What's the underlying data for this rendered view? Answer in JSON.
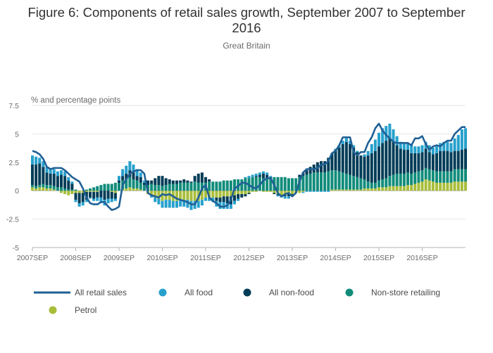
{
  "colors": {
    "all_retail": "#206095",
    "all_food": "#27a0cc",
    "non_food": "#003c57",
    "non_store": "#118c7b",
    "petrol": "#a8bd3a",
    "grid": "#e6e6e6",
    "zero_line": "#b3b3b3"
  },
  "chart_data": {
    "type": "bar",
    "title": "Figure 6: Components of retail sales growth, September 2007 to September 2016",
    "subtitle": "Great Britain",
    "ylabel": "% and percentage points",
    "ylim": [
      -5,
      7.5
    ],
    "yticks": [
      -5,
      -2.5,
      0,
      2.5,
      5,
      7.5
    ],
    "ytick_labels": [
      "-5",
      "-2.5",
      "0",
      "2.5",
      "5",
      "7.5"
    ],
    "xtick_labels": [
      "2007SEP",
      "2008SEP",
      "2009SEP",
      "2010SEP",
      "2011SEP",
      "2012SEP",
      "2013SEP",
      "2014SEP",
      "2015SEP",
      "2016SEP"
    ],
    "x_start": "2007SEP",
    "x_end": "2016SEP",
    "stacked": true,
    "legend": [
      "All retail sales",
      "All food",
      "All non-food",
      "Non-store retailing",
      "Petrol"
    ],
    "series": [
      {
        "name": "Petrol",
        "values": [
          0.3,
          0.2,
          0.3,
          0.3,
          0.2,
          0.2,
          0.1,
          0.0,
          -0.2,
          -0.3,
          -0.4,
          -0.3,
          -0.2,
          -0.2,
          -0.2,
          -0.1,
          -0.1,
          -0.1,
          -0.1,
          0.0,
          0.0,
          0.0,
          -0.1,
          -0.2,
          0.0,
          0.1,
          0.2,
          0.3,
          0.2,
          0.2,
          0.1,
          0.0,
          -0.3,
          -0.4,
          -0.6,
          -0.7,
          -0.9,
          -0.8,
          -0.8,
          -0.9,
          -0.9,
          -0.8,
          -0.8,
          -0.8,
          -0.9,
          -0.9,
          -0.9,
          -0.8,
          -0.6,
          -0.6,
          -0.6,
          -0.6,
          -0.6,
          -0.5,
          -0.5,
          -0.5,
          -0.4,
          -0.3,
          -0.3,
          -0.3,
          -0.2,
          -0.1,
          -0.1,
          0.0,
          -0.1,
          -0.1,
          -0.1,
          -0.2,
          -0.3,
          -0.4,
          -0.4,
          -0.3,
          -0.3,
          -0.2,
          -0.2,
          -0.1,
          0.0,
          0.0,
          0.0,
          0.0,
          0.0,
          0.0,
          0.0,
          0.1,
          0.1,
          0.1,
          0.1,
          0.1,
          0.1,
          0.1,
          0.1,
          0.1,
          0.2,
          0.2,
          0.2,
          0.2,
          0.3,
          0.3,
          0.3,
          0.4,
          0.4,
          0.4,
          0.4,
          0.4,
          0.5,
          0.5,
          0.6,
          0.7,
          0.8,
          1.0,
          0.9,
          0.8,
          0.7,
          0.7,
          0.7,
          0.7,
          0.7,
          0.8,
          0.8,
          0.8,
          0.8
        ]
      },
      {
        "name": "Non-store retailing",
        "values": [
          0.2,
          0.2,
          0.2,
          0.3,
          0.3,
          0.3,
          0.3,
          0.3,
          0.3,
          0.2,
          0.1,
          0.1,
          0.1,
          0.0,
          0.0,
          0.1,
          0.2,
          0.3,
          0.4,
          0.5,
          0.6,
          0.6,
          0.6,
          0.7,
          0.7,
          0.8,
          0.8,
          0.9,
          0.8,
          0.7,
          0.6,
          0.5,
          0.5,
          0.6,
          0.5,
          0.5,
          0.4,
          0.5,
          0.6,
          0.6,
          0.6,
          0.7,
          0.7,
          0.7,
          0.7,
          0.8,
          0.7,
          0.7,
          0.7,
          0.8,
          0.8,
          0.8,
          0.8,
          0.9,
          0.9,
          0.9,
          1.0,
          1.0,
          1.0,
          1.1,
          1.1,
          1.2,
          1.2,
          1.2,
          1.1,
          1.1,
          1.1,
          1.2,
          1.2,
          1.2,
          1.2,
          1.1,
          1.1,
          1.1,
          1.2,
          1.3,
          1.4,
          1.5,
          1.6,
          1.6,
          1.6,
          1.6,
          1.7,
          1.7,
          1.7,
          1.6,
          1.5,
          1.4,
          1.3,
          1.2,
          1.1,
          1.0,
          0.8,
          0.6,
          0.5,
          0.5,
          0.6,
          0.7,
          0.8,
          0.9,
          1.0,
          1.1,
          1.1,
          1.1,
          1.1,
          1.0,
          1.0,
          1.0,
          1.0,
          1.0,
          1.0,
          1.0,
          1.0,
          1.0,
          1.0,
          1.0,
          1.0,
          1.1,
          1.1,
          1.1,
          1.1
        ]
      },
      {
        "name": "All non-food",
        "values": [
          1.8,
          1.9,
          1.9,
          1.5,
          1.1,
          1.0,
          1.1,
          1.0,
          1.1,
          1.1,
          0.8,
          0.5,
          -0.6,
          -0.9,
          -0.8,
          -0.7,
          -0.5,
          -0.6,
          -0.5,
          -0.6,
          -0.8,
          -0.7,
          -0.6,
          -0.5,
          0.2,
          0.4,
          0.5,
          0.6,
          0.6,
          0.4,
          0.5,
          0.2,
          0.4,
          0.3,
          0.6,
          0.8,
          0.9,
          0.6,
          0.4,
          0.3,
          0.3,
          0.2,
          0.3,
          0.2,
          0.1,
          0.5,
          0.8,
          0.9,
          0.5,
          0.2,
          0.0,
          -0.3,
          -0.4,
          -0.5,
          -0.6,
          -0.7,
          -0.5,
          -0.4,
          -0.3,
          -0.2,
          -0.1,
          0.0,
          0.1,
          0.2,
          0.4,
          0.3,
          0.1,
          -0.1,
          -0.1,
          0.0,
          -0.1,
          -0.2,
          -0.1,
          0.0,
          0.2,
          0.3,
          0.4,
          0.6,
          0.7,
          0.9,
          1.0,
          1.0,
          1.2,
          1.5,
          1.8,
          2.1,
          2.5,
          2.8,
          2.7,
          2.5,
          2.2,
          2.0,
          2.0,
          2.3,
          2.6,
          2.8,
          3.0,
          3.2,
          3.3,
          3.3,
          2.9,
          2.5,
          2.2,
          2.1,
          2.0,
          1.8,
          1.7,
          1.6,
          1.6,
          1.7,
          1.5,
          1.4,
          1.6,
          1.8,
          1.8,
          1.8,
          1.7,
          1.6,
          1.6,
          1.7,
          1.8
        ]
      },
      {
        "name": "All food",
        "values": [
          0.8,
          0.7,
          0.5,
          0.5,
          0.5,
          0.4,
          0.4,
          0.4,
          0.4,
          0.4,
          0.3,
          0.2,
          -0.2,
          -0.3,
          -0.3,
          -0.2,
          -0.1,
          -0.2,
          -0.3,
          -0.4,
          -0.5,
          -0.4,
          -0.3,
          -0.2,
          0.4,
          0.6,
          0.7,
          0.8,
          0.7,
          0.6,
          0.4,
          0.2,
          0.0,
          -0.2,
          -0.4,
          -0.5,
          -0.6,
          -0.7,
          -0.7,
          -0.6,
          -0.6,
          -0.6,
          -0.6,
          -0.7,
          -0.8,
          -0.7,
          -0.6,
          -0.5,
          -0.3,
          -0.3,
          -0.4,
          -0.5,
          -0.6,
          -0.6,
          -0.5,
          -0.4,
          -0.3,
          -0.2,
          0.0,
          0.1,
          0.2,
          0.2,
          0.2,
          0.2,
          0.2,
          0.2,
          0.1,
          0.0,
          -0.1,
          -0.2,
          -0.2,
          -0.2,
          -0.1,
          0.0,
          0.0,
          -0.1,
          -0.1,
          -0.1,
          -0.1,
          -0.1,
          -0.1,
          -0.1,
          -0.1,
          0.0,
          0.1,
          0.2,
          0.3,
          0.4,
          0.3,
          0.2,
          0.1,
          0.0,
          0.2,
          0.4,
          0.8,
          1.0,
          1.2,
          1.3,
          1.3,
          1.3,
          1.1,
          0.8,
          0.6,
          0.6,
          0.6,
          0.8,
          0.6,
          0.6,
          0.6,
          0.6,
          0.6,
          0.6,
          0.6,
          0.7,
          0.8,
          0.8,
          0.8,
          1.1,
          1.4,
          1.8,
          1.8
        ]
      },
      {
        "name": "All retail sales",
        "type": "line",
        "values": [
          3.5,
          3.4,
          3.2,
          2.8,
          2.1,
          1.9,
          2.0,
          2.0,
          2.0,
          1.8,
          1.5,
          1.2,
          1.0,
          0.8,
          0.2,
          -0.6,
          -1.1,
          -1.2,
          -1.2,
          -1.0,
          -1.0,
          -1.4,
          -1.7,
          -1.6,
          -1.4,
          0.5,
          1.0,
          1.5,
          1.7,
          1.8,
          1.8,
          1.5,
          -0.2,
          -0.4,
          -0.5,
          -0.6,
          -0.3,
          -0.4,
          -0.3,
          -0.5,
          -0.7,
          -0.8,
          -0.9,
          -1.0,
          -1.2,
          -1.2,
          -0.6,
          0.2,
          0.5,
          -0.6,
          -0.9,
          -1.1,
          -1.4,
          -1.4,
          -1.3,
          -0.8,
          0.2,
          0.4,
          0.7,
          0.7,
          0.5,
          0.3,
          0.2,
          0.5,
          0.9,
          1.1,
          1.1,
          0.5,
          -0.2,
          -0.5,
          -0.3,
          -0.2,
          -0.5,
          -0.2,
          0.8,
          1.6,
          1.9,
          1.9,
          1.9,
          2.0,
          2.3,
          2.3,
          2.6,
          3.3,
          3.5,
          4.0,
          4.7,
          4.7,
          4.7,
          3.4,
          3.1,
          3.4,
          3.4,
          4.2,
          4.7,
          5.5,
          5.9,
          5.3,
          4.9,
          4.6,
          4.3,
          4.2,
          4.2,
          4.2,
          4.2,
          4.0,
          4.6,
          4.6,
          4.8,
          4.1,
          3.6,
          3.9,
          4.0,
          3.9,
          4.2,
          4.4,
          4.4,
          5.0,
          5.3,
          5.6,
          5.6
        ]
      }
    ]
  }
}
